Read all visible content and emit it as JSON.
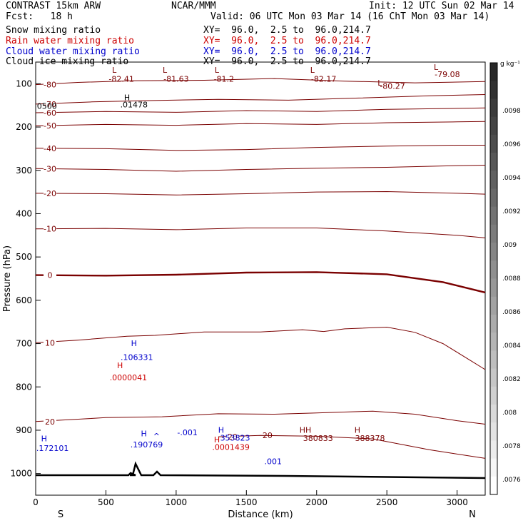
{
  "header": {
    "title_left": "CONTRAST 15km ARW",
    "title_mid": "NCAR/MMM",
    "init": "Init: 12 UTC Sun 02 Mar 14",
    "fcst": "Fcst:   18 h",
    "valid": "Valid: 06 UTC Mon 03 Mar 14 (16 ChT Mon 03 Mar 14)",
    "fields": [
      {
        "label": "Snow mixing ratio",
        "xy": "XY=  96.0,  2.5 to  96.0,214.7",
        "color": "#000000"
      },
      {
        "label": "Rain water mixing ratio",
        "xy": "XY=  96.0,  2.5 to  96.0,214.7",
        "color": "#cc0000"
      },
      {
        "label": "Cloud water mixing ratio",
        "xy": "XY=  96.0,  2.5 to  96.0,214.7",
        "color": "#0000cc"
      },
      {
        "label": "Cloud ice mixing ratio",
        "xy": "XY=  96.0,  2.5 to  96.0,214.7",
        "color": "#000000"
      }
    ]
  },
  "chart_data": {
    "type": "contour",
    "xlabel": "Distance (km)",
    "ylabel": "Pressure (hPa)",
    "x_ticks": [
      0,
      500,
      1000,
      1500,
      2000,
      2500,
      3000
    ],
    "xlim": [
      0,
      3200
    ],
    "y_ticks": [
      100,
      200,
      300,
      400,
      500,
      600,
      700,
      800,
      900,
      1000
    ],
    "ylim": [
      50,
      1050
    ],
    "endpoints": {
      "left": "S",
      "right": "N"
    },
    "colorbar": {
      "unit": "g kg⁻¹",
      "labels": [
        ".0098",
        ".0096",
        ".0094",
        ".0092",
        ".009",
        ".0088",
        ".0086",
        ".0084",
        ".0082",
        ".008",
        ".0078",
        ".0076"
      ]
    },
    "temperature_contours": [
      {
        "label": "-80",
        "points": [
          [
            0,
            102
          ],
          [
            300,
            97
          ],
          [
            700,
            93
          ],
          [
            1200,
            92
          ],
          [
            1700,
            88
          ],
          [
            2200,
            94
          ],
          [
            2700,
            98
          ],
          [
            3200,
            95
          ]
        ]
      },
      {
        "label": "-70",
        "points": [
          [
            0,
            147
          ],
          [
            400,
            142
          ],
          [
            800,
            139
          ],
          [
            1300,
            136
          ],
          [
            1800,
            138
          ],
          [
            2300,
            133
          ],
          [
            2800,
            128
          ],
          [
            3200,
            125
          ]
        ]
      },
      {
        "label": "-60",
        "points": [
          [
            0,
            167
          ],
          [
            500,
            164
          ],
          [
            1000,
            166
          ],
          [
            1500,
            162
          ],
          [
            2000,
            164
          ],
          [
            2500,
            159
          ],
          [
            3000,
            157
          ],
          [
            3200,
            156
          ]
        ]
      },
      {
        "label": "-50",
        "points": [
          [
            0,
            197
          ],
          [
            500,
            194
          ],
          [
            1000,
            196
          ],
          [
            1500,
            192
          ],
          [
            2000,
            194
          ],
          [
            2500,
            190
          ],
          [
            3000,
            188
          ],
          [
            3200,
            187
          ]
        ]
      },
      {
        "label": "-40",
        "points": [
          [
            0,
            249
          ],
          [
            500,
            250
          ],
          [
            1000,
            254
          ],
          [
            1500,
            252
          ],
          [
            2000,
            247
          ],
          [
            2500,
            244
          ],
          [
            3000,
            242
          ],
          [
            3200,
            242
          ]
        ]
      },
      {
        "label": "-30",
        "points": [
          [
            0,
            296
          ],
          [
            500,
            298
          ],
          [
            1000,
            302
          ],
          [
            1500,
            298
          ],
          [
            2000,
            295
          ],
          [
            2500,
            293
          ],
          [
            3000,
            289
          ],
          [
            3200,
            288
          ]
        ]
      },
      {
        "label": "-20",
        "points": [
          [
            0,
            353
          ],
          [
            500,
            354
          ],
          [
            1000,
            357
          ],
          [
            1500,
            354
          ],
          [
            2000,
            350
          ],
          [
            2500,
            349
          ],
          [
            3000,
            353
          ],
          [
            3200,
            355
          ]
        ]
      },
      {
        "label": "-10",
        "points": [
          [
            0,
            435
          ],
          [
            500,
            434
          ],
          [
            1000,
            437
          ],
          [
            1500,
            433
          ],
          [
            2000,
            433
          ],
          [
            2500,
            440
          ],
          [
            3000,
            450
          ],
          [
            3200,
            456
          ]
        ]
      },
      {
        "label": "0",
        "points": [
          [
            0,
            542
          ],
          [
            500,
            543
          ],
          [
            1000,
            541
          ],
          [
            1500,
            536
          ],
          [
            2000,
            535
          ],
          [
            2500,
            540
          ],
          [
            2900,
            558
          ],
          [
            3200,
            582
          ]
        ]
      },
      {
        "label": "10",
        "points": [
          [
            0,
            698
          ],
          [
            300,
            692
          ],
          [
            650,
            683
          ],
          [
            850,
            681
          ],
          [
            1200,
            673
          ],
          [
            1600,
            673
          ],
          [
            1900,
            668
          ],
          [
            2050,
            672
          ],
          [
            2200,
            666
          ],
          [
            2500,
            662
          ],
          [
            2700,
            674
          ],
          [
            2900,
            700
          ],
          [
            3100,
            740
          ],
          [
            3200,
            760
          ]
        ]
      },
      {
        "label": "20",
        "points": [
          [
            0,
            880
          ],
          [
            500,
            871
          ],
          [
            900,
            869
          ],
          [
            1300,
            862
          ],
          [
            1700,
            863
          ],
          [
            2000,
            860
          ],
          [
            2400,
            856
          ],
          [
            2700,
            863
          ],
          [
            3000,
            878
          ],
          [
            3200,
            886
          ]
        ]
      },
      {
        "label": "20",
        "points": [
          [
            1300,
            915
          ],
          [
            1600,
            912
          ],
          [
            2000,
            914
          ],
          [
            2400,
            920
          ],
          [
            2800,
            945
          ],
          [
            3100,
            960
          ],
          [
            3200,
            965
          ]
        ]
      }
    ],
    "labels": [
      {
        "text": "L",
        "x": 560,
        "y": 75,
        "color": "#7a0000"
      },
      {
        "text": "-82.41",
        "x": 610,
        "y": 95,
        "color": "#7a0000"
      },
      {
        "text": "L",
        "x": 920,
        "y": 75,
        "color": "#7a0000"
      },
      {
        "text": "-81.63",
        "x": 1000,
        "y": 95,
        "color": "#7a0000"
      },
      {
        "text": "L",
        "x": 1290,
        "y": 75,
        "color": "#7a0000"
      },
      {
        "text": "-81.2",
        "x": 1340,
        "y": 95,
        "color": "#7a0000"
      },
      {
        "text": "L",
        "x": 1970,
        "y": 75,
        "color": "#7a0000"
      },
      {
        "text": "-82.17",
        "x": 2050,
        "y": 95,
        "color": "#7a0000"
      },
      {
        "text": "L",
        "x": 2450,
        "y": 104,
        "color": "#7a0000"
      },
      {
        "text": "-80.27",
        "x": 2540,
        "y": 112,
        "color": "#7a0000"
      },
      {
        "text": "L",
        "x": 2850,
        "y": 68,
        "color": "#7a0000"
      },
      {
        "text": "-79.08",
        "x": 2930,
        "y": 85,
        "color": "#7a0000"
      },
      {
        "text": "H",
        "x": 650,
        "y": 138,
        "color": "#000000"
      },
      {
        "text": ".01478",
        "x": 700,
        "y": 155,
        "color": "#000000"
      },
      {
        "text": "0500",
        "x": 80,
        "y": 158,
        "color": "#000000"
      },
      {
        "text": "H",
        "x": 700,
        "y": 706,
        "color": "#0000cc"
      },
      {
        "text": ".106331",
        "x": 720,
        "y": 738,
        "color": "#0000cc"
      },
      {
        "text": "H",
        "x": 600,
        "y": 757,
        "color": "#cc0000"
      },
      {
        "text": ".0000041",
        "x": 660,
        "y": 785,
        "color": "#cc0000"
      },
      {
        "text": "H",
        "x": 60,
        "y": 926,
        "color": "#0000cc"
      },
      {
        "text": ".172101",
        "x": 120,
        "y": 948,
        "color": "#0000cc"
      },
      {
        "text": "H",
        "x": 770,
        "y": 914,
        "color": "#0000cc"
      },
      {
        "text": ".190769",
        "x": 790,
        "y": 940,
        "color": "#0000cc"
      },
      {
        "text": "^",
        "x": 860,
        "y": 920,
        "color": "#0000cc"
      },
      {
        "text": "-.001",
        "x": 1080,
        "y": 912,
        "color": "#0000cc"
      },
      {
        "text": "H",
        "x": 1320,
        "y": 906,
        "color": "#0000cc"
      },
      {
        "text": "353823",
        "x": 1420,
        "y": 924,
        "color": "#0000cc"
      },
      {
        "text": "H",
        "x": 1290,
        "y": 928,
        "color": "#cc0000"
      },
      {
        "text": ".0001439",
        "x": 1390,
        "y": 945,
        "color": "#cc0000"
      },
      {
        "text": "20",
        "x": 1650,
        "y": 918,
        "color": "#7a0000"
      },
      {
        "text": ".001",
        "x": 1690,
        "y": 978,
        "color": "#0000cc"
      },
      {
        "text": "HH",
        "x": 1920,
        "y": 906,
        "color": "#7a0000"
      },
      {
        "text": "380833",
        "x": 2010,
        "y": 925,
        "color": "#7a0000"
      },
      {
        "text": "H",
        "x": 2290,
        "y": 906,
        "color": "#7a0000"
      },
      {
        "text": "388378",
        "x": 2380,
        "y": 925,
        "color": "#7a0000"
      }
    ]
  }
}
